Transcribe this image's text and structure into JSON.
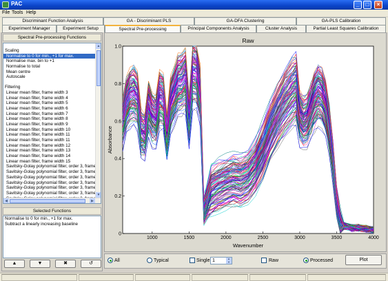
{
  "window": {
    "title": "PAC",
    "minimize": "_",
    "maximize": "□",
    "close": "×"
  },
  "menu": [
    "File",
    "Tools",
    "Help"
  ],
  "tabs_row1": [
    "Discriminant Function Analysis",
    "GA - Discriminant PLS",
    "GA-DFA Clustering",
    "GA-PLS Calibration"
  ],
  "tabs_row2": [
    "Experiment Manager",
    "Experiment Setup",
    "Spectral Pre-processing",
    "Principal Components Analysis",
    "Cluster Analysis",
    "Partial Least Squares Calibration"
  ],
  "functions_panel": {
    "title": "Spectral Pre-processing Functions",
    "scaling_header": "Scaling",
    "scaling_items": [
      "Normalise to 0 for min., +1 for max.",
      "Normalise max. bin to +1",
      "Normalise to total",
      "Mean centre",
      "Autoscale"
    ],
    "filtering_header": "Filtering",
    "filtering_items": [
      "Linear mean filter, frame width 3",
      "Linear mean filter, frame width 4",
      "Linear mean filter, frame width 5",
      "Linear mean filter, frame width 6",
      "Linear mean filter, frame width 7",
      "Linear mean filter, frame width 8",
      "Linear mean filter, frame width 9",
      "Linear mean filter, frame width 10",
      "Linear mean filter, frame width 11",
      "Linear mean filter, frame width 11",
      "Linear mean filter, frame width 12",
      "Linear mean filter, frame width 13",
      "Linear mean filter, frame width 14",
      "Linear mean filter, frame width 15",
      "Savitsky-Golay polynomial filter, order 3, frame w",
      "Savitsky-Golay polynomial filter, order 3, frame w",
      "Savitsky-Golay polynomial filter, order 3, frame w",
      "Savitsky-Golay polynomial filter, order 3, frame w",
      "Savitsky-Golay polynomial filter, order 3, frame w",
      "Savitsky-Golay polynomial filter, order 3, frame w",
      "Savitsky-Golay polynomial filter, order 3, frame w",
      "Savitsky-Golay polynomial filter, order 3, frame w"
    ]
  },
  "selected_panel": {
    "title": "Selected Functions",
    "items": [
      "Normalise to 0 for min., +1 for max.",
      "Subtract a linearly increasing baseline"
    ]
  },
  "nav_buttons": {
    "up": "▲",
    "down": "▼",
    "remove": "✖",
    "undo": "↺"
  },
  "controls": {
    "all_label": "All",
    "typical_label": "Typical",
    "single_label": "Single",
    "single_value": "1",
    "raw_label": "Raw",
    "processed_label": "Processed",
    "plot_button": "Plot"
  },
  "chart_data": {
    "type": "line",
    "title": "Raw",
    "xlabel": "Wavenumber",
    "ylabel": "Absorbance",
    "xlim": [
      600,
      4000
    ],
    "ylim": [
      0,
      1
    ],
    "x_ticks": [
      1000,
      1500,
      2000,
      2500,
      3000,
      3500,
      4000
    ],
    "y_ticks": [
      0,
      0.2,
      0.4,
      0.6,
      0.8,
      1.0
    ],
    "grid": false,
    "legend": "none",
    "series_count_approx": 120,
    "template_curve": {
      "x": [
        600,
        650,
        700,
        750,
        800,
        850,
        900,
        950,
        1000,
        1050,
        1100,
        1150,
        1200,
        1250,
        1300,
        1350,
        1400,
        1450,
        1500,
        1550,
        1600,
        1650,
        1700,
        1800,
        1900,
        2000,
        2100,
        2200,
        2300,
        2400,
        2500,
        2600,
        2700,
        2800,
        2900,
        2950,
        3000,
        3050,
        3100,
        3150,
        3200,
        3250,
        3300,
        3350,
        3400,
        3450,
        3500,
        3550,
        3600,
        3700,
        3800,
        3900,
        4000
      ],
      "y": [
        0.68,
        0.8,
        0.85,
        0.86,
        0.83,
        0.62,
        0.6,
        0.78,
        0.72,
        0.7,
        0.84,
        0.82,
        0.6,
        0.8,
        0.86,
        0.92,
        0.93,
        0.96,
        0.7,
        0.99,
        0.98,
        0.86,
        0.14,
        0.25,
        0.28,
        0.3,
        0.32,
        0.31,
        0.34,
        0.4,
        0.5,
        0.62,
        0.72,
        0.8,
        0.86,
        0.88,
        0.72,
        0.68,
        0.7,
        0.76,
        0.82,
        0.86,
        0.84,
        0.78,
        0.64,
        0.44,
        0.2,
        0.06,
        0.02,
        0.01,
        0.01,
        0.005,
        0.0
      ]
    },
    "palette": [
      "#ff00ff",
      "#0000ff",
      "#00aa00",
      "#ff0000",
      "#00cccc",
      "#cc00cc",
      "#000080",
      "#800080",
      "#008080",
      "#ff6600",
      "#6600ff",
      "#cc0066",
      "#008000",
      "#0066ff",
      "#993399",
      "#00ff99",
      "#666666",
      "#ff3399",
      "#3399ff",
      "#9900cc"
    ]
  }
}
